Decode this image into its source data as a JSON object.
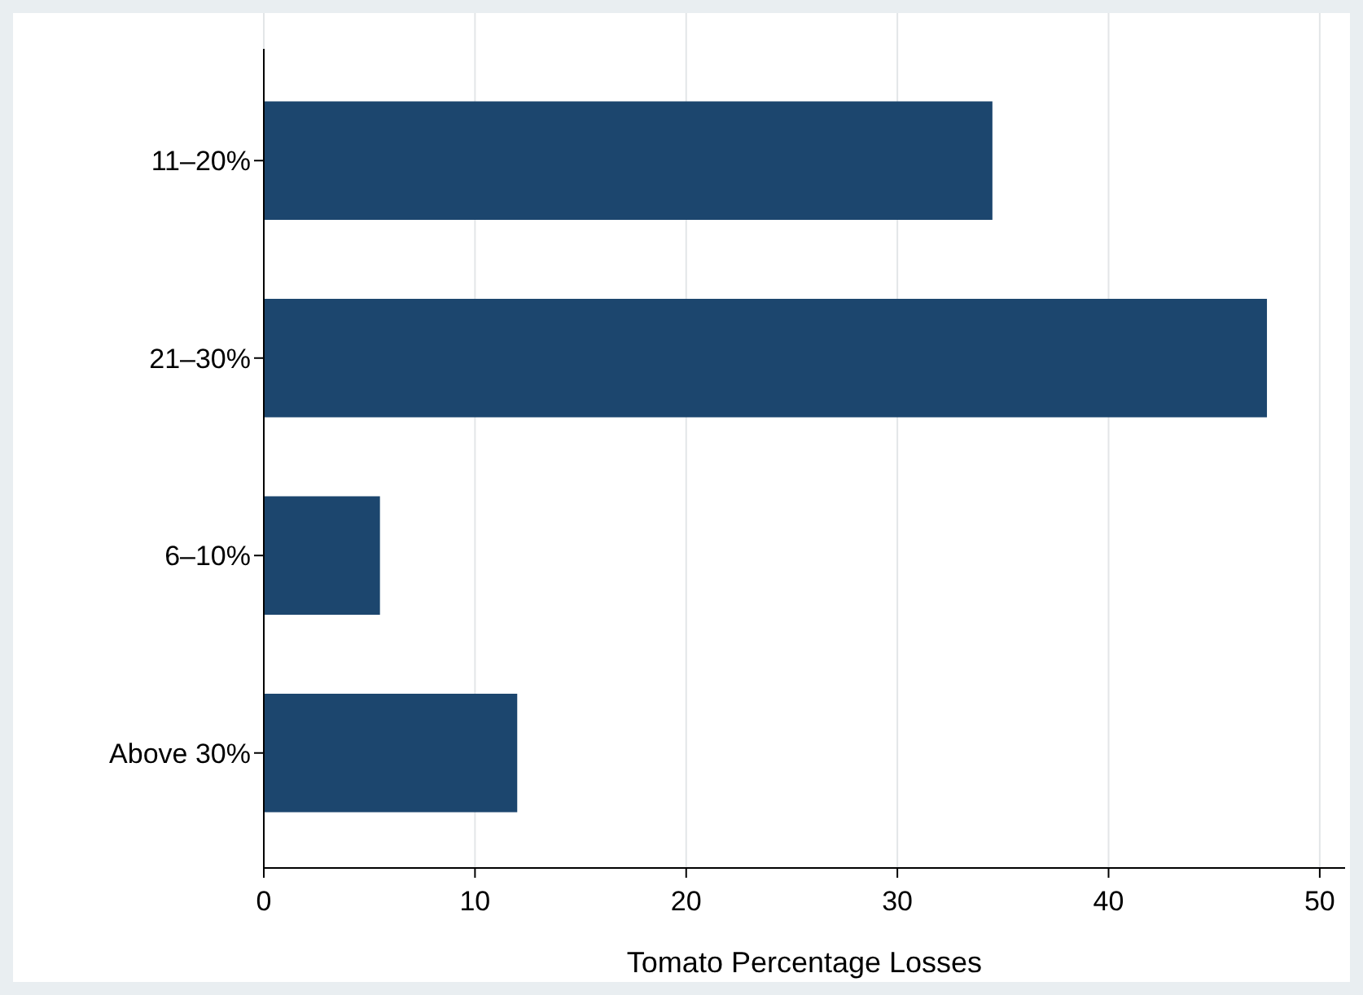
{
  "chart_data": {
    "type": "bar",
    "orientation": "horizontal",
    "xlabel": "Tomato Percentage Losses",
    "categories": [
      "11–20%",
      "21–30%",
      "6–10%",
      "Above 30%"
    ],
    "values": [
      34.5,
      47.5,
      5.5,
      12
    ],
    "color": "#1c466e",
    "xlim": [
      0,
      51.2
    ],
    "xticks": [
      0,
      10,
      20,
      30,
      40,
      50
    ],
    "grid": "x"
  }
}
